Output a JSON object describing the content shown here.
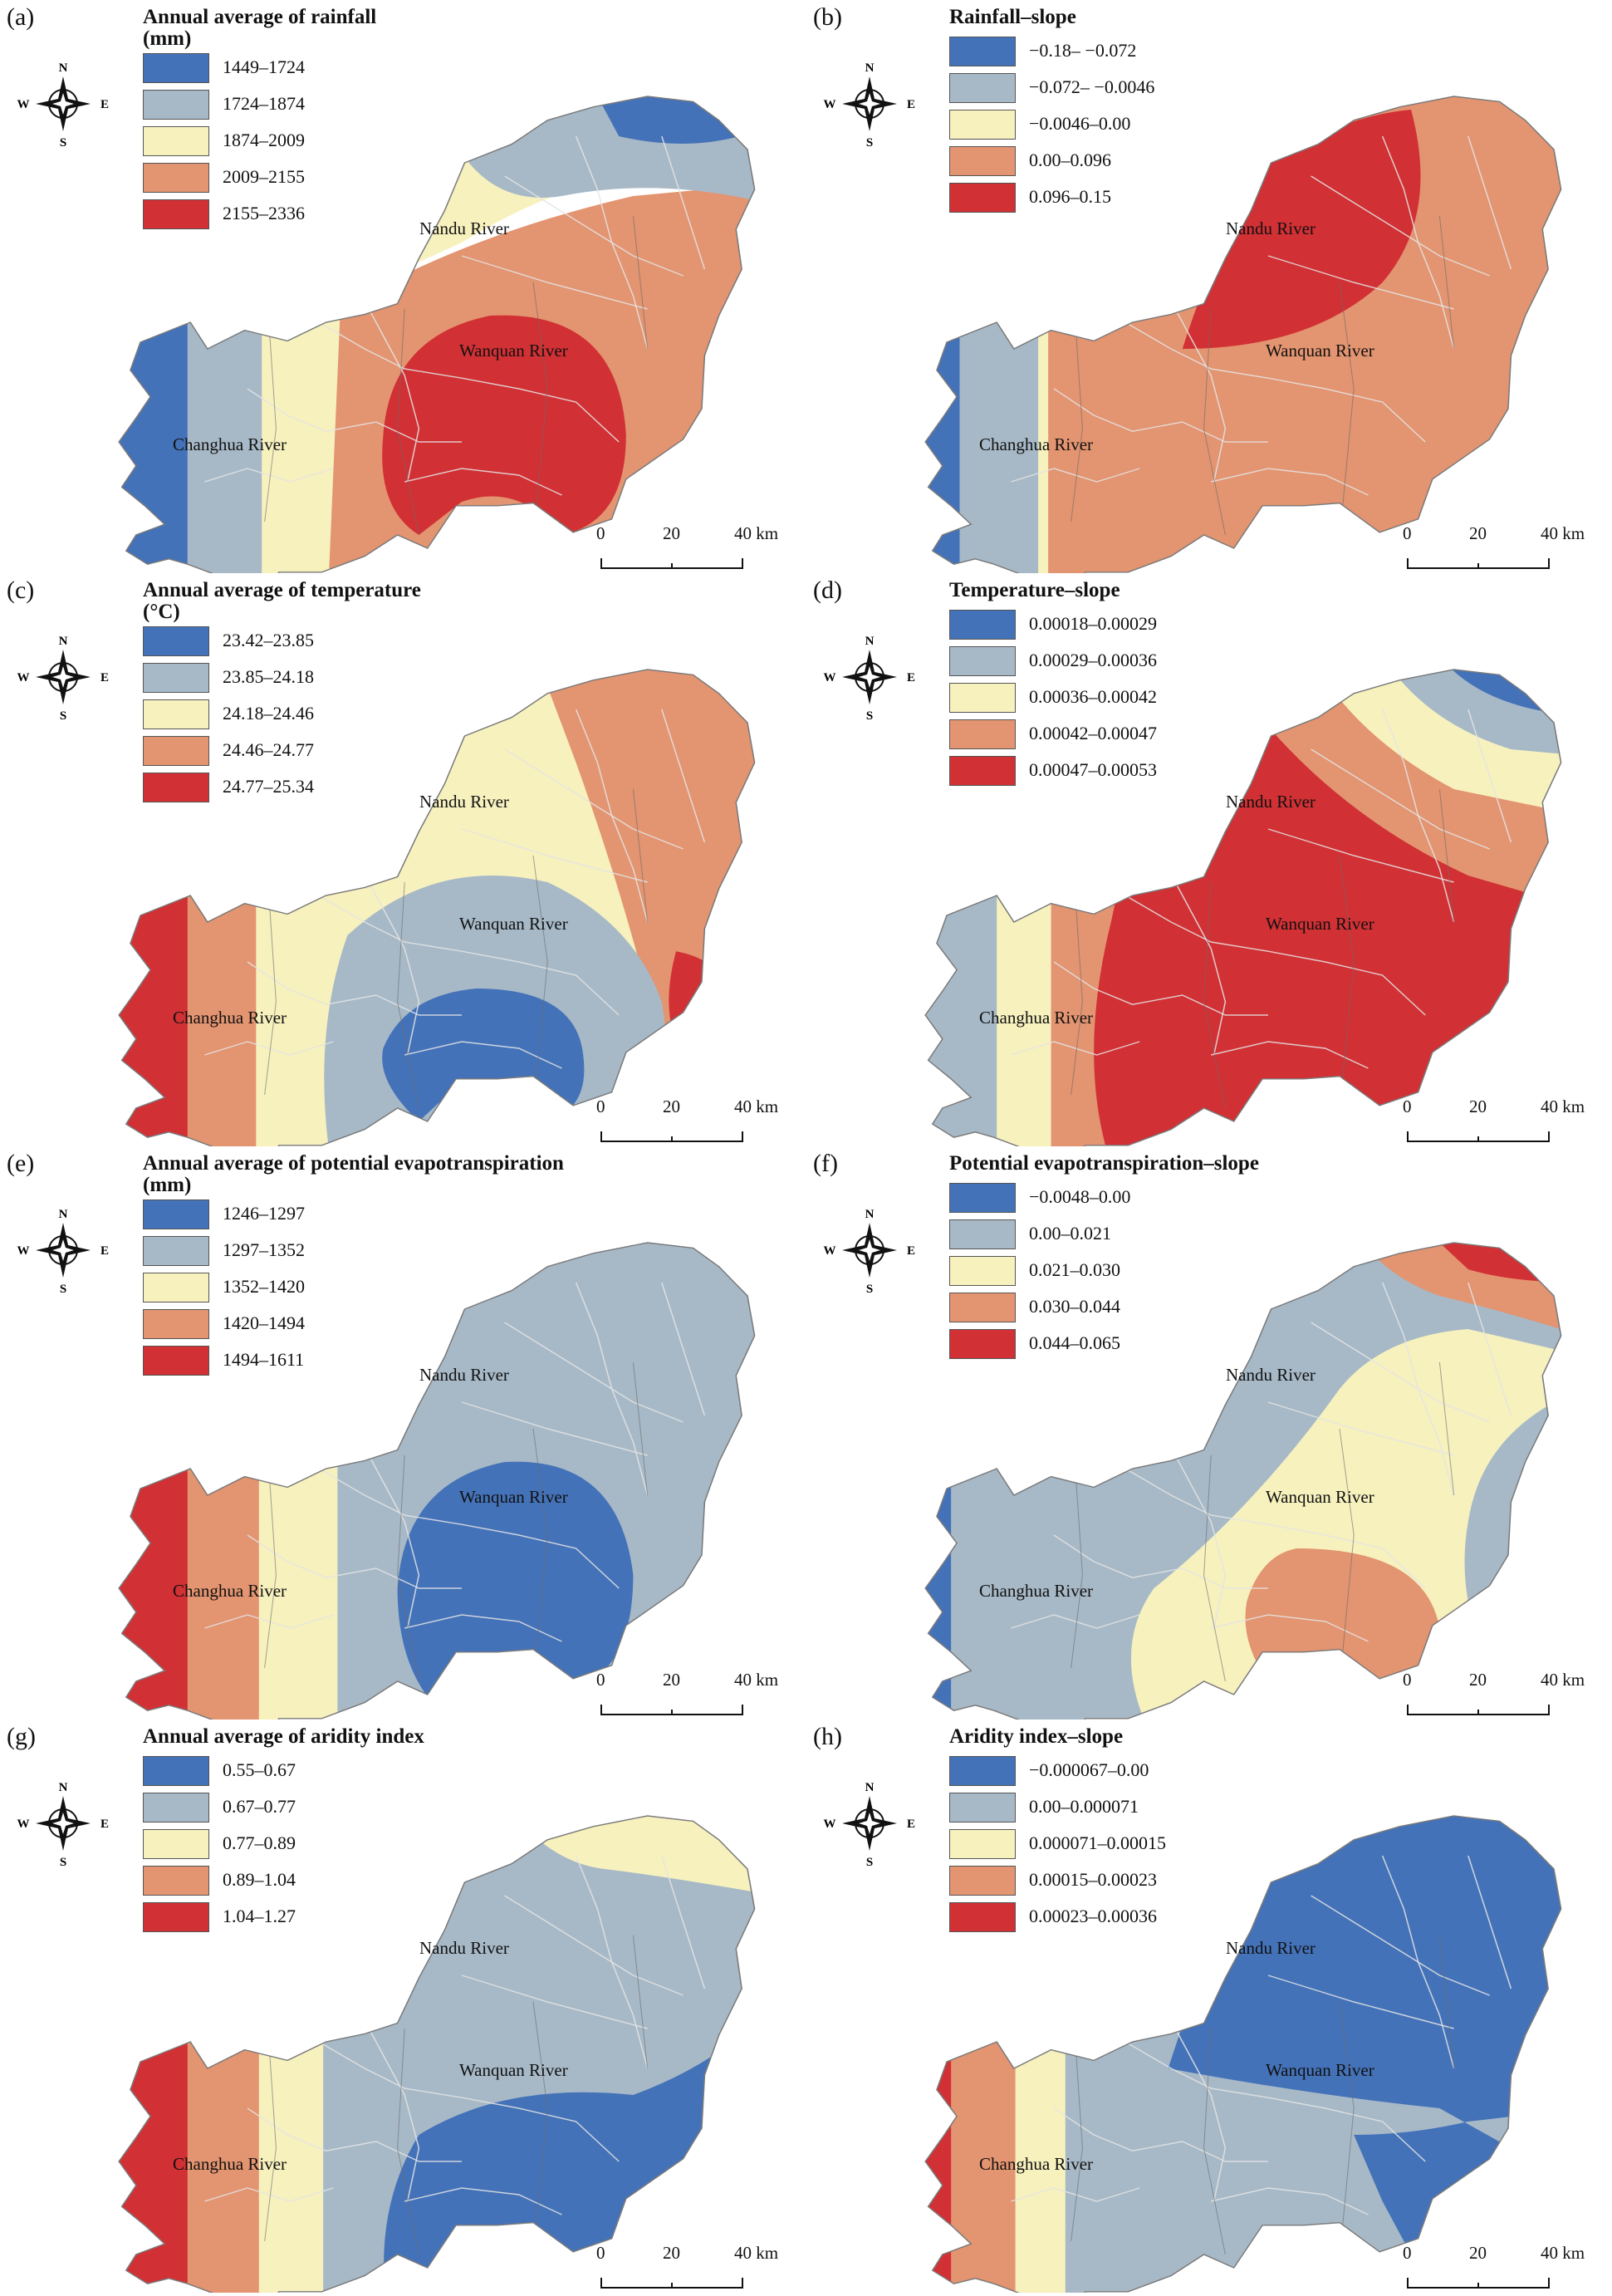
{
  "compass": {
    "n": "N",
    "s": "S",
    "w": "W",
    "e": "E"
  },
  "rivers": {
    "nandu": "Nandu River",
    "wanquan": "Wanquan River",
    "changhua": "Changhua River"
  },
  "scale": {
    "t0": "0",
    "t1": "20",
    "t2": "40 km"
  },
  "panels": [
    {
      "label": "(a)",
      "title": "Annual average of rainfall",
      "title2": "(mm)",
      "colors": [
        "#4472b8",
        "#a7b9c7",
        "#f7f1be",
        "#e39470",
        "#d13034"
      ],
      "classes": [
        "1449–1724",
        "1724–1874",
        "1874–2009",
        "2009–2155",
        "2155–2336"
      ]
    },
    {
      "label": "(b)",
      "title": "Rainfall–slope",
      "title2": "",
      "colors": [
        "#4472b8",
        "#a7b9c7",
        "#f7f1be",
        "#e39470",
        "#d13034"
      ],
      "classes": [
        "−0.18– −0.072",
        "−0.072– −0.0046",
        "−0.0046–0.00",
        "0.00–0.096",
        "0.096–0.15"
      ]
    },
    {
      "label": "(c)",
      "title": "Annual average of temperature",
      "title2": "(°C)",
      "colors": [
        "#4472b8",
        "#a7b9c7",
        "#f7f1be",
        "#e39470",
        "#d13034"
      ],
      "classes": [
        "23.42–23.85",
        "23.85–24.18",
        "24.18–24.46",
        "24.46–24.77",
        "24.77–25.34"
      ]
    },
    {
      "label": "(d)",
      "title": "Temperature–slope",
      "title2": "",
      "colors": [
        "#4472b8",
        "#a7b9c7",
        "#f7f1be",
        "#e39470",
        "#d13034"
      ],
      "classes": [
        "0.00018–0.00029",
        "0.00029–0.00036",
        "0.00036–0.00042",
        "0.00042–0.00047",
        "0.00047–0.00053"
      ]
    },
    {
      "label": "(e)",
      "title": "Annual average of potential evapotranspiration",
      "title2": "(mm)",
      "colors": [
        "#4472b8",
        "#a7b9c7",
        "#f7f1be",
        "#e39470",
        "#d13034"
      ],
      "classes": [
        "1246–1297",
        "1297–1352",
        "1352–1420",
        "1420–1494",
        "1494–1611"
      ]
    },
    {
      "label": "(f)",
      "title": "Potential evapotranspiration–slope",
      "title2": "",
      "colors": [
        "#4472b8",
        "#a7b9c7",
        "#f7f1be",
        "#e39470",
        "#d13034"
      ],
      "classes": [
        "−0.0048–0.00",
        "0.00–0.021",
        "0.021–0.030",
        "0.030–0.044",
        "0.044–0.065"
      ]
    },
    {
      "label": "(g)",
      "title": "Annual average of aridity index",
      "title2": "",
      "colors": [
        "#4472b8",
        "#a7b9c7",
        "#f7f1be",
        "#e39470",
        "#d13034"
      ],
      "classes": [
        "0.55–0.67",
        "0.67–0.77",
        "0.77–0.89",
        "0.89–1.04",
        "1.04–1.27"
      ]
    },
    {
      "label": "(h)",
      "title": "Aridity index–slope",
      "title2": "",
      "colors": [
        "#4472b8",
        "#a7b9c7",
        "#f7f1be",
        "#e39470",
        "#d13034"
      ],
      "classes": [
        "−0.000067–0.00",
        "0.00–0.000071",
        "0.000071–0.00015",
        "0.00015–0.00023",
        "0.00023–0.00036"
      ]
    }
  ]
}
